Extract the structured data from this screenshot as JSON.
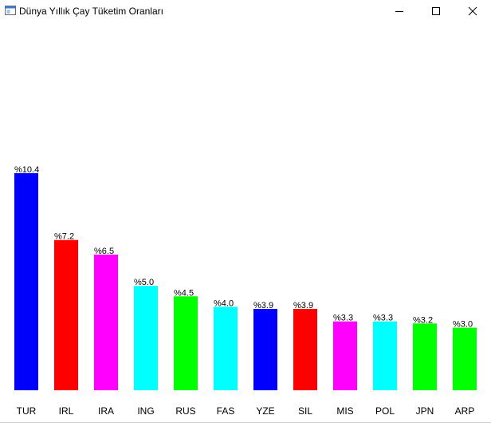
{
  "window": {
    "title": "Dünya Yıllık Çay Tüketim Oranları",
    "icons": {
      "app": "app-window-icon",
      "minimize": "minimize-icon",
      "maximize": "maximize-icon",
      "close": "close-icon"
    }
  },
  "chart_data": {
    "type": "bar",
    "categories": [
      "TUR",
      "IRL",
      "IRA",
      "ING",
      "RUS",
      "FAS",
      "YZE",
      "SIL",
      "MIS",
      "POL",
      "JPN",
      "ARP"
    ],
    "values": [
      10.4,
      7.2,
      6.5,
      5.0,
      4.5,
      4.0,
      3.9,
      3.9,
      3.3,
      3.3,
      3.2,
      3.0
    ],
    "value_labels": [
      "%10.4",
      "%7.2",
      "%6.5",
      "%5.0",
      "%4.5",
      "%4.0",
      "%3.9",
      "%3.9",
      "%3.3",
      "%3.3",
      "%3.2",
      "%3.0"
    ],
    "colors": [
      "#0000ff",
      "#ff0000",
      "#ff00ff",
      "#00ffff",
      "#00ff00",
      "#00ffff",
      "#0000ff",
      "#ff0000",
      "#ff00ff",
      "#00ffff",
      "#00ff00",
      "#00ff00"
    ],
    "title": "",
    "xlabel": "",
    "ylabel": "",
    "ylim": [
      0,
      10.4
    ],
    "grid": false,
    "legend": "none"
  }
}
